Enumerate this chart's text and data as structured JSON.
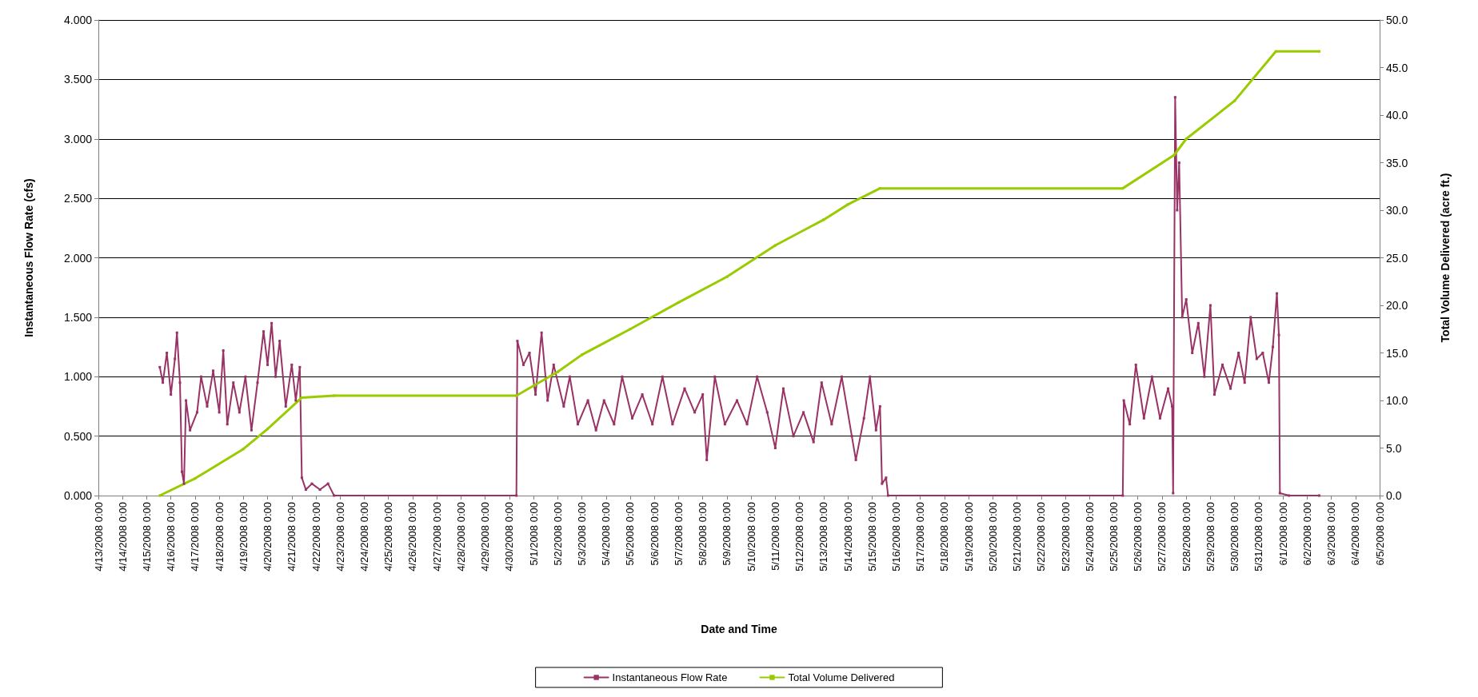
{
  "chart_data": {
    "type": "line",
    "xlabel": "Date and Time",
    "ylabel": "Instantaneous Flow Rate (cfs)",
    "y2label": "Total Volume Delivered (acre ft.)",
    "xlim": [
      "2008-04-13T00:00",
      "2008-06-05T00:00"
    ],
    "xticks": [
      {
        "value": "2008-04-13T00:00",
        "label": "4/13/2008 0:00"
      },
      {
        "value": "2008-04-14T00:00",
        "label": "4/14/2008 0:00"
      },
      {
        "value": "2008-04-15T00:00",
        "label": "4/15/2008 0:00"
      },
      {
        "value": "2008-04-16T00:00",
        "label": "4/16/2008 0:00"
      },
      {
        "value": "2008-04-17T00:00",
        "label": "4/17/2008 0:00"
      },
      {
        "value": "2008-04-18T00:00",
        "label": "4/18/2008 0:00"
      },
      {
        "value": "2008-04-19T00:00",
        "label": "4/19/2008 0:00"
      },
      {
        "value": "2008-04-20T00:00",
        "label": "4/20/2008 0:00"
      },
      {
        "value": "2008-04-21T00:00",
        "label": "4/21/2008 0:00"
      },
      {
        "value": "2008-04-22T00:00",
        "label": "4/22/2008 0:00"
      },
      {
        "value": "2008-04-23T00:00",
        "label": "4/23/2008 0:00"
      },
      {
        "value": "2008-04-24T00:00",
        "label": "4/24/2008 0:00"
      },
      {
        "value": "2008-04-25T00:00",
        "label": "4/25/2008 0:00"
      },
      {
        "value": "2008-04-26T00:00",
        "label": "4/26/2008 0:00"
      },
      {
        "value": "2008-04-27T00:00",
        "label": "4/27/2008 0:00"
      },
      {
        "value": "2008-04-28T00:00",
        "label": "4/28/2008 0:00"
      },
      {
        "value": "2008-04-29T00:00",
        "label": "4/29/2008 0:00"
      },
      {
        "value": "2008-04-30T00:00",
        "label": "4/30/2008 0:00"
      },
      {
        "value": "2008-05-01T00:00",
        "label": "5/1/2008 0:00"
      },
      {
        "value": "2008-05-02T00:00",
        "label": "5/2/2008 0:00"
      },
      {
        "value": "2008-05-03T00:00",
        "label": "5/3/2008 0:00"
      },
      {
        "value": "2008-05-04T00:00",
        "label": "5/4/2008 0:00"
      },
      {
        "value": "2008-05-05T00:00",
        "label": "5/5/2008 0:00"
      },
      {
        "value": "2008-05-06T00:00",
        "label": "5/6/2008 0:00"
      },
      {
        "value": "2008-05-07T00:00",
        "label": "5/7/2008 0:00"
      },
      {
        "value": "2008-05-08T00:00",
        "label": "5/8/2008 0:00"
      },
      {
        "value": "2008-05-09T00:00",
        "label": "5/9/2008 0:00"
      },
      {
        "value": "2008-05-10T00:00",
        "label": "5/10/2008 0:00"
      },
      {
        "value": "2008-05-11T00:00",
        "label": "5/11/2008 0:00"
      },
      {
        "value": "2008-05-12T00:00",
        "label": "5/12/2008 0:00"
      },
      {
        "value": "2008-05-13T00:00",
        "label": "5/13/2008 0:00"
      },
      {
        "value": "2008-05-14T00:00",
        "label": "5/14/2008 0:00"
      },
      {
        "value": "2008-05-15T00:00",
        "label": "5/15/2008 0:00"
      },
      {
        "value": "2008-05-16T00:00",
        "label": "5/16/2008 0:00"
      },
      {
        "value": "2008-05-17T00:00",
        "label": "5/17/2008 0:00"
      },
      {
        "value": "2008-05-18T00:00",
        "label": "5/18/2008 0:00"
      },
      {
        "value": "2008-05-19T00:00",
        "label": "5/19/2008 0:00"
      },
      {
        "value": "2008-05-20T00:00",
        "label": "5/20/2008 0:00"
      },
      {
        "value": "2008-05-21T00:00",
        "label": "5/21/2008 0:00"
      },
      {
        "value": "2008-05-22T00:00",
        "label": "5/22/2008 0:00"
      },
      {
        "value": "2008-05-23T00:00",
        "label": "5/23/2008 0:00"
      },
      {
        "value": "2008-05-24T00:00",
        "label": "5/24/2008 0:00"
      },
      {
        "value": "2008-05-25T00:00",
        "label": "5/25/2008 0:00"
      },
      {
        "value": "2008-05-26T00:00",
        "label": "5/26/2008 0:00"
      },
      {
        "value": "2008-05-27T00:00",
        "label": "5/27/2008 0:00"
      },
      {
        "value": "2008-05-28T00:00",
        "label": "5/28/2008 0:00"
      },
      {
        "value": "2008-05-29T00:00",
        "label": "5/29/2008 0:00"
      },
      {
        "value": "2008-05-30T00:00",
        "label": "5/30/2008 0:00"
      },
      {
        "value": "2008-05-31T00:00",
        "label": "5/31/2008 0:00"
      },
      {
        "value": "2008-06-01T00:00",
        "label": "6/1/2008 0:00"
      },
      {
        "value": "2008-06-02T00:00",
        "label": "6/2/2008 0:00"
      },
      {
        "value": "2008-06-03T00:00",
        "label": "6/3/2008 0:00"
      },
      {
        "value": "2008-06-04T00:00",
        "label": "6/4/2008 0:00"
      },
      {
        "value": "2008-06-05T00:00",
        "label": "6/5/2008 0:00"
      }
    ],
    "ylim": [
      0,
      4
    ],
    "yticks": [
      {
        "value": 0,
        "label": "0.000"
      },
      {
        "value": 0.5,
        "label": "0.500"
      },
      {
        "value": 1,
        "label": "1.000"
      },
      {
        "value": 1.5,
        "label": "1.500"
      },
      {
        "value": 2,
        "label": "2.000"
      },
      {
        "value": 2.5,
        "label": "2.500"
      },
      {
        "value": 3,
        "label": "3.000"
      },
      {
        "value": 3.5,
        "label": "3.500"
      },
      {
        "value": 4,
        "label": "4.000"
      }
    ],
    "y2lim": [
      0,
      50
    ],
    "y2ticks": [
      {
        "value": 0,
        "label": "0.0"
      },
      {
        "value": 5,
        "label": "5.0"
      },
      {
        "value": 10,
        "label": "10.0"
      },
      {
        "value": 15,
        "label": "15.0"
      },
      {
        "value": 20,
        "label": "20.0"
      },
      {
        "value": 25,
        "label": "25.0"
      },
      {
        "value": 30,
        "label": "30.0"
      },
      {
        "value": 35,
        "label": "35.0"
      },
      {
        "value": 40,
        "label": "40.0"
      },
      {
        "value": 45,
        "label": "45.0"
      },
      {
        "value": 50,
        "label": "50.0"
      }
    ],
    "grid": "y",
    "legend": "bottom",
    "marker": "square",
    "line_style": "solid",
    "series": [
      {
        "name": "Instantaneous Flow Rate",
        "color": "#993366",
        "x": [
          "2008-04-15T13:00",
          "2008-04-15T16:00",
          "2008-04-15T20:00",
          "2008-04-16T00:00",
          "2008-04-16T04:00",
          "2008-04-16T06:00",
          "2008-04-16T09:00",
          "2008-04-16T11:00",
          "2008-04-16T13:00",
          "2008-04-16T15:00",
          "2008-04-16T19:00",
          "2008-04-17T02:00",
          "2008-04-17T06:00",
          "2008-04-17T12:00",
          "2008-04-17T18:00",
          "2008-04-18T00:00",
          "2008-04-18T04:00",
          "2008-04-18T08:00",
          "2008-04-18T14:00",
          "2008-04-18T20:00",
          "2008-04-19T02:00",
          "2008-04-19T08:00",
          "2008-04-19T14:00",
          "2008-04-19T20:00",
          "2008-04-20T00:00",
          "2008-04-20T04:00",
          "2008-04-20T08:00",
          "2008-04-20T12:00",
          "2008-04-20T18:00",
          "2008-04-21T00:00",
          "2008-04-21T04:00",
          "2008-04-21T08:00",
          "2008-04-21T10:00",
          "2008-04-21T14:00",
          "2008-04-21T20:00",
          "2008-04-22T04:00",
          "2008-04-22T12:00",
          "2008-04-22T18:00",
          "2008-04-30T07:00",
          "2008-04-30T08:00",
          "2008-04-30T14:00",
          "2008-04-30T20:00",
          "2008-05-01T02:00",
          "2008-05-01T08:00",
          "2008-05-01T14:00",
          "2008-05-01T20:00",
          "2008-05-02T06:00",
          "2008-05-02T12:00",
          "2008-05-02T20:00",
          "2008-05-03T06:00",
          "2008-05-03T14:00",
          "2008-05-03T22:00",
          "2008-05-04T08:00",
          "2008-05-04T16:00",
          "2008-05-05T02:00",
          "2008-05-05T12:00",
          "2008-05-05T22:00",
          "2008-05-06T08:00",
          "2008-05-06T18:00",
          "2008-05-07T06:00",
          "2008-05-07T16:00",
          "2008-05-08T00:00",
          "2008-05-08T04:00",
          "2008-05-08T12:00",
          "2008-05-08T22:00",
          "2008-05-09T10:00",
          "2008-05-09T20:00",
          "2008-05-10T06:00",
          "2008-05-10T16:00",
          "2008-05-11T00:00",
          "2008-05-11T08:00",
          "2008-05-11T18:00",
          "2008-05-12T04:00",
          "2008-05-12T14:00",
          "2008-05-12T22:00",
          "2008-05-13T08:00",
          "2008-05-13T18:00",
          "2008-05-14T04:00",
          "2008-05-14T08:00",
          "2008-05-14T16:00",
          "2008-05-14T22:00",
          "2008-05-15T04:00",
          "2008-05-15T08:00",
          "2008-05-15T10:00",
          "2008-05-15T14:00",
          "2008-05-15T16:00",
          "2008-05-25T09:00",
          "2008-05-25T10:00",
          "2008-05-25T16:00",
          "2008-05-25T22:00",
          "2008-05-26T06:00",
          "2008-05-26T14:00",
          "2008-05-26T22:00",
          "2008-05-27T06:00",
          "2008-05-27T10:00",
          "2008-05-27T11:00",
          "2008-05-27T13:00",
          "2008-05-27T15:00",
          "2008-05-27T17:00",
          "2008-05-27T20:00",
          "2008-05-28T00:00",
          "2008-05-28T06:00",
          "2008-05-28T12:00",
          "2008-05-28T18:00",
          "2008-05-29T00:00",
          "2008-05-29T04:00",
          "2008-05-29T12:00",
          "2008-05-29T20:00",
          "2008-05-30T04:00",
          "2008-05-30T10:00",
          "2008-05-30T16:00",
          "2008-05-30T22:00",
          "2008-05-31T04:00",
          "2008-05-31T10:00",
          "2008-05-31T14:00",
          "2008-05-31T18:00",
          "2008-05-31T20:00",
          "2008-05-31T21:00",
          "2008-06-01T06:00",
          "2008-06-02T12:00"
        ],
        "values": [
          1.08,
          0.95,
          1.2,
          0.85,
          1.15,
          1.37,
          0.95,
          0.2,
          0.1,
          0.8,
          0.55,
          0.7,
          1.0,
          0.75,
          1.05,
          0.7,
          1.22,
          0.6,
          0.95,
          0.7,
          1.0,
          0.55,
          0.95,
          1.38,
          1.1,
          1.45,
          1.0,
          1.3,
          0.75,
          1.1,
          0.8,
          1.08,
          0.15,
          0.05,
          0.1,
          0.05,
          0.1,
          0,
          0,
          1.3,
          1.1,
          1.2,
          0.85,
          1.37,
          0.8,
          1.1,
          0.75,
          1.0,
          0.6,
          0.8,
          0.55,
          0.8,
          0.6,
          1.0,
          0.65,
          0.85,
          0.6,
          1.0,
          0.6,
          0.9,
          0.7,
          0.85,
          0.3,
          1.0,
          0.6,
          0.8,
          0.6,
          1.0,
          0.7,
          0.4,
          0.9,
          0.5,
          0.7,
          0.45,
          0.95,
          0.6,
          1.0,
          0.5,
          0.3,
          0.65,
          1.0,
          0.55,
          0.75,
          0.1,
          0.15,
          0,
          0,
          0.8,
          0.6,
          1.1,
          0.65,
          1.0,
          0.65,
          0.9,
          0.75,
          0.02,
          3.35,
          2.4,
          2.8,
          1.5,
          1.65,
          1.2,
          1.45,
          1.0,
          1.6,
          0.85,
          1.1,
          0.9,
          1.2,
          0.95,
          1.5,
          1.15,
          1.2,
          0.95,
          1.25,
          1.7,
          1.35,
          0.02,
          0,
          0
        ]
      },
      {
        "name": "Total Volume Delivered",
        "color": "#99cc00",
        "axis": "y2",
        "x": [
          "2008-04-15T13:00",
          "2008-04-17T00:00",
          "2008-04-19T00:00",
          "2008-04-20T00:00",
          "2008-04-21T10:00",
          "2008-04-22T18:00",
          "2008-04-30T07:00",
          "2008-05-02T00:00",
          "2008-05-03T00:00",
          "2008-05-05T00:00",
          "2008-05-07T00:00",
          "2008-05-09T00:00",
          "2008-05-11T00:00",
          "2008-05-13T00:00",
          "2008-05-14T00:00",
          "2008-05-15T08:00",
          "2008-05-25T09:00",
          "2008-05-27T12:00",
          "2008-05-28T00:00",
          "2008-05-30T00:00",
          "2008-05-31T17:00",
          "2008-06-02T12:00"
        ],
        "values": [
          0,
          1.8,
          4.9,
          7.0,
          10.3,
          10.5,
          10.5,
          13.0,
          14.8,
          17.5,
          20.3,
          23.0,
          26.3,
          29.0,
          30.6,
          32.3,
          32.3,
          35.8,
          37.5,
          41.5,
          46.7,
          46.7
        ]
      }
    ]
  }
}
